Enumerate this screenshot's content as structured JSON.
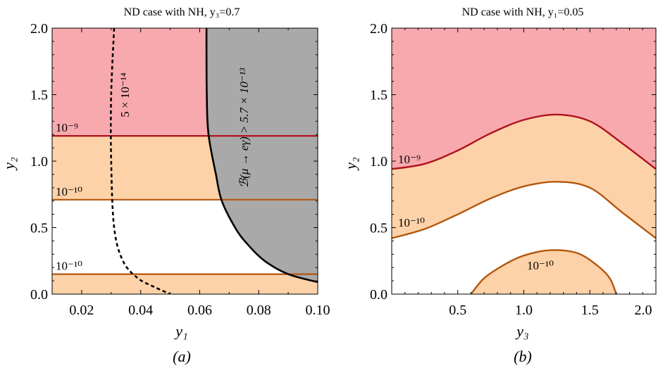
{
  "chart_data": [
    {
      "type": "contour",
      "title": "ND case with NH,  y₃=0.7",
      "xlabel": "y₁",
      "ylabel": "y₂",
      "xlim": [
        0.01,
        0.1
      ],
      "ylim": [
        0.0,
        2.0
      ],
      "xticks": [
        "0.02",
        "0.04",
        "0.06",
        "0.08",
        "0.10"
      ],
      "yticks": [
        "0.0",
        "0.5",
        "1.0",
        "1.5",
        "2.0"
      ],
      "caption": "(a)",
      "colors": {
        "pink": "#f8a9ae",
        "peach": "#fdd2a8",
        "gray": "#a9a9a9",
        "dark_red": "#b0111e",
        "orange": "#b3570f"
      },
      "contour_labels": [
        "10⁻⁹",
        "10⁻¹⁰",
        "10⁻¹⁰"
      ],
      "contours": [
        {
          "label": "10⁻⁹",
          "y": 1.19
        },
        {
          "label": "10⁻¹⁰",
          "y": 0.71
        },
        {
          "label": "10⁻¹⁰",
          "y": 0.15
        }
      ],
      "dashed_label": "5 × 10⁻¹⁴",
      "dashed_curve": [
        [
          0.031,
          2.0
        ],
        [
          0.03,
          1.5
        ],
        [
          0.03,
          1.0
        ],
        [
          0.031,
          0.5
        ],
        [
          0.034,
          0.25
        ],
        [
          0.039,
          0.12
        ],
        [
          0.045,
          0.05
        ],
        [
          0.05,
          0.0
        ]
      ],
      "excluded_label": "ℬ(μ → eγ) > 5.7 × 10⁻¹³",
      "excluded_boundary": [
        [
          0.0623,
          2.0
        ],
        [
          0.0624,
          1.5
        ],
        [
          0.063,
          1.2
        ],
        [
          0.0655,
          0.9
        ],
        [
          0.0675,
          0.7
        ],
        [
          0.072,
          0.5
        ],
        [
          0.076,
          0.38
        ],
        [
          0.082,
          0.25
        ],
        [
          0.09,
          0.15
        ],
        [
          0.1,
          0.09
        ]
      ]
    },
    {
      "type": "contour",
      "title": "ND case with NH,  y₁=0.05",
      "xlabel": "y₃",
      "ylabel": "y₂",
      "xlim": [
        0.0,
        2.0
      ],
      "ylim": [
        0.0,
        2.0
      ],
      "xticks": [
        "0.5",
        "1.0",
        "1.5",
        "2.0"
      ],
      "yticks": [
        "0.0",
        "0.5",
        "1.0",
        "1.5",
        "2.0"
      ],
      "caption": "(b)",
      "contour_labels": [
        "10⁻⁹",
        "10⁻¹⁰",
        "10⁻¹⁰"
      ],
      "upper_curve": [
        [
          0.0,
          0.94
        ],
        [
          0.25,
          0.98
        ],
        [
          0.5,
          1.08
        ],
        [
          0.75,
          1.21
        ],
        [
          1.0,
          1.31
        ],
        [
          1.25,
          1.35
        ],
        [
          1.5,
          1.3
        ],
        [
          1.75,
          1.13
        ],
        [
          2.0,
          0.94
        ]
      ],
      "middle_curve": [
        [
          0.0,
          0.42
        ],
        [
          0.25,
          0.49
        ],
        [
          0.5,
          0.6
        ],
        [
          0.75,
          0.72
        ],
        [
          1.0,
          0.81
        ],
        [
          1.25,
          0.845
        ],
        [
          1.5,
          0.8
        ],
        [
          1.75,
          0.61
        ],
        [
          2.0,
          0.42
        ]
      ],
      "bottom_curve": [
        [
          0.6,
          0.0
        ],
        [
          0.7,
          0.12
        ],
        [
          0.85,
          0.22
        ],
        [
          1.0,
          0.29
        ],
        [
          1.2,
          0.33
        ],
        [
          1.4,
          0.31
        ],
        [
          1.55,
          0.22
        ],
        [
          1.65,
          0.12
        ],
        [
          1.7,
          0.0
        ]
      ]
    }
  ]
}
